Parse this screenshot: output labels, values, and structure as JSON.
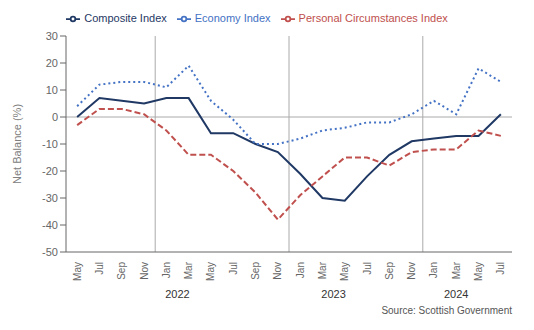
{
  "chart_data": {
    "type": "line",
    "categories": [
      "May",
      "Jul",
      "Sep",
      "Nov",
      "Jan",
      "Mar",
      "May",
      "Jul",
      "Sep",
      "Nov",
      "Jan",
      "Mar",
      "May",
      "Jul",
      "Sep",
      "Nov",
      "Jan",
      "Mar",
      "May",
      "Jul"
    ],
    "series": [
      {
        "name": "Composite Index",
        "color": "#1f3864",
        "line_style": "solid",
        "values": [
          0,
          7,
          6,
          5,
          7,
          7,
          -6,
          -6,
          -10,
          -13,
          -21,
          -30,
          -31,
          -22,
          -14,
          -9,
          -8,
          -7,
          -7,
          1
        ]
      },
      {
        "name": "Economy Index",
        "color": "#4472c4",
        "line_style": "dotted",
        "values": [
          4,
          12,
          13,
          13,
          11,
          19,
          6,
          -1,
          -10,
          -10,
          -8,
          -5,
          -4,
          -2,
          -2,
          1,
          6,
          1,
          18,
          13
        ]
      },
      {
        "name": "Personal Circumstances Index",
        "color": "#c0504d",
        "line_style": "dashed",
        "values": [
          -3,
          3,
          3,
          1,
          -5,
          -14,
          -14,
          -20,
          -28,
          -38,
          -29,
          -22,
          -15,
          -15,
          -18,
          -13,
          -12,
          -12,
          -5,
          -7
        ]
      }
    ],
    "y_label": "Net Balance (%)",
    "ylim": [
      -50,
      30
    ],
    "yticks": [
      -50,
      -40,
      -30,
      -20,
      -10,
      0,
      10,
      20,
      30
    ],
    "legend": "top",
    "grid": false,
    "annotations": [
      {
        "text": "2022",
        "x": 4.5
      },
      {
        "text": "2023",
        "x": 11.5
      },
      {
        "text": "2024",
        "x": 17.0
      }
    ],
    "dividers_before": [
      4,
      10,
      16
    ],
    "reference_y": [
      0
    ],
    "source": "Source: Scottish Government"
  }
}
